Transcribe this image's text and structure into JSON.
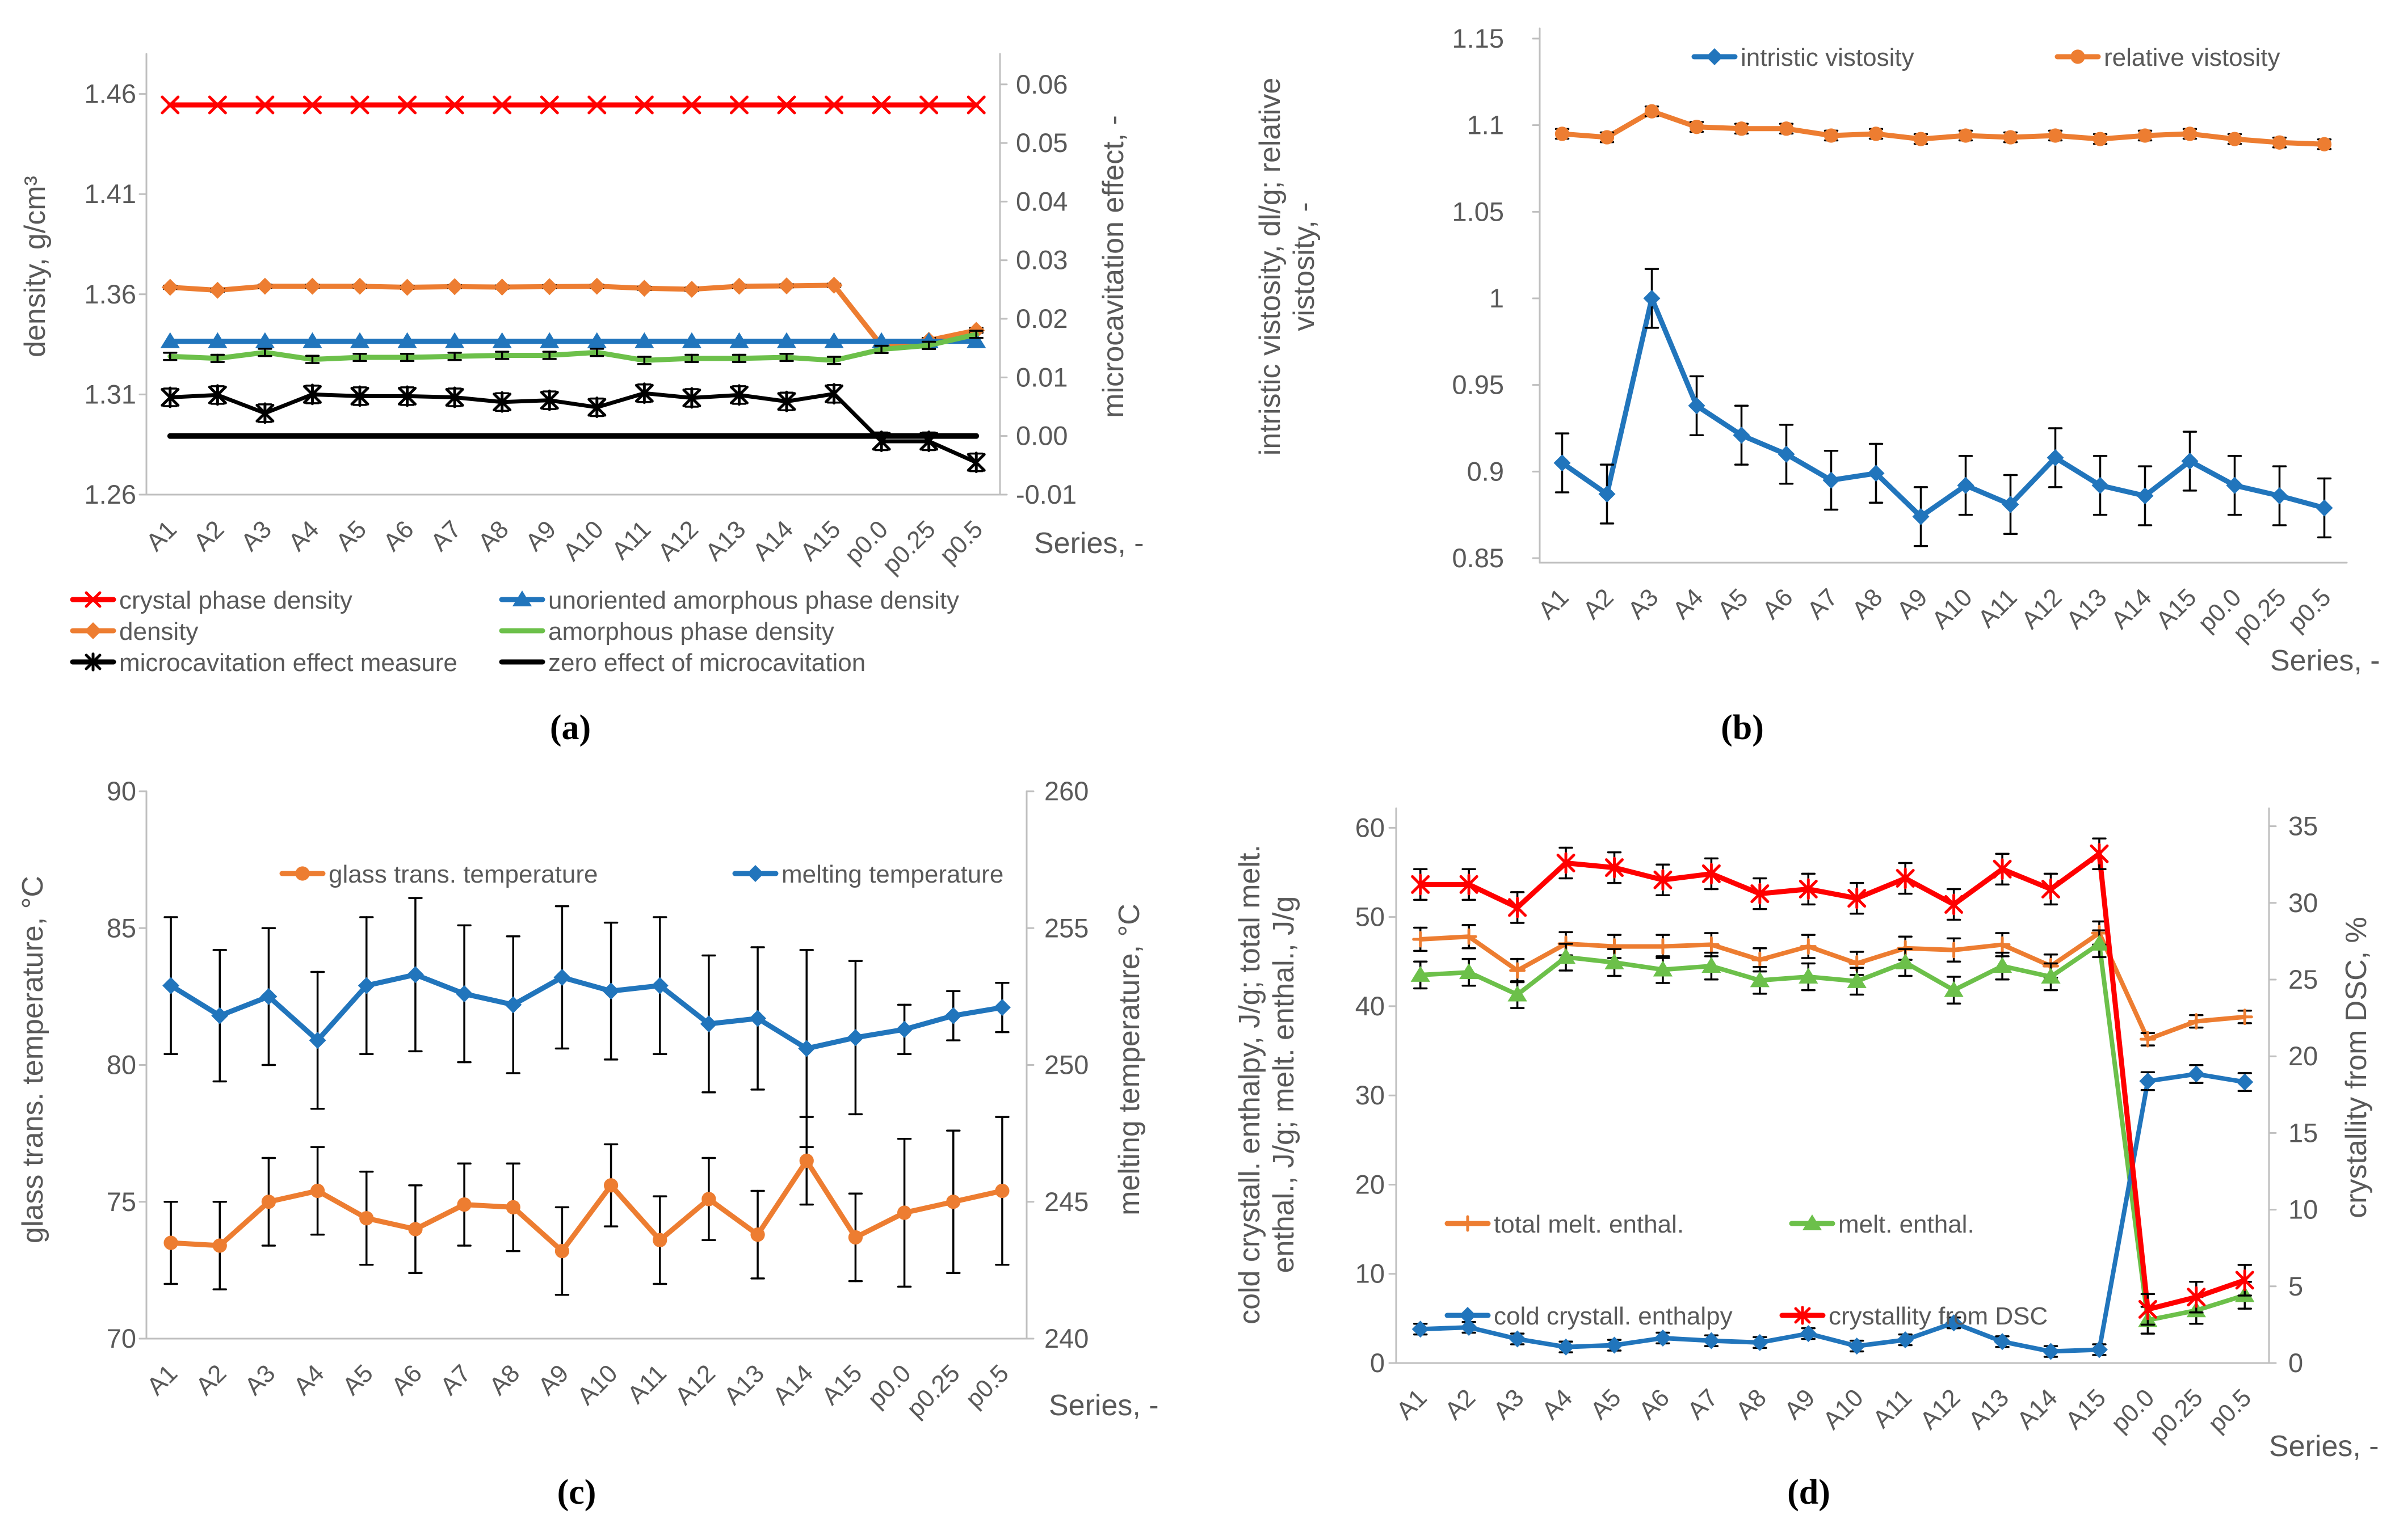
{
  "figure": {
    "x_axis_title": "Series, -",
    "text_color": "#595959",
    "axis_line_color": "#BFBFBF"
  },
  "chart_data": [
    {
      "id": "a",
      "type": "line",
      "caption": "(a)",
      "xlabel": "Series, -",
      "ylabel_left_lines": [
        "density, g/cm³"
      ],
      "ylabel_right": "microcavitation effect, -",
      "categories": [
        "A1",
        "A2",
        "A3",
        "A4",
        "A5",
        "A6",
        "A7",
        "A8",
        "A9",
        "A10",
        "A11",
        "A12",
        "A13",
        "A14",
        "A15",
        "p0.0",
        "p0.25",
        "p0.5"
      ],
      "axes": {
        "left": {
          "tick_labels": [
            "1.46",
            "1.41",
            "1.36",
            "1.31",
            "1.26"
          ],
          "tick_values": [
            1.46,
            1.41,
            1.36,
            1.31,
            1.26
          ]
        },
        "right": {
          "tick_labels": [
            "0.06",
            "0.05",
            "0.04",
            "0.03",
            "0.02",
            "0.01",
            "0.00",
            "-0.01"
          ],
          "tick_values": [
            0.06,
            0.05,
            0.04,
            0.03,
            0.02,
            0.01,
            0.0,
            -0.01
          ]
        }
      },
      "series": [
        {
          "name": "crystal phase density",
          "color": "#FF0000",
          "marker": "x",
          "axis": "left",
          "line_width": 9,
          "errors": null,
          "values": [
            1.4545,
            1.4545,
            1.4545,
            1.4545,
            1.4545,
            1.4545,
            1.4545,
            1.4545,
            1.4545,
            1.4545,
            1.4545,
            1.4545,
            1.4545,
            1.4545,
            1.4545,
            1.4545,
            1.4545,
            1.4545
          ]
        },
        {
          "name": "density",
          "color": "#ED7D31",
          "marker": "diamond",
          "axis": "left",
          "line_width": 9,
          "errors": [
            0.0008,
            0.0008,
            0.0008,
            0.0008,
            0.0008,
            0.0008,
            0.0008,
            0.0008,
            0.0008,
            0.0008,
            0.0008,
            0.0008,
            0.0008,
            0.0008,
            0.0008,
            0.0012,
            0.0012,
            0.0012
          ],
          "values": [
            1.3635,
            1.362,
            1.364,
            1.364,
            1.364,
            1.3635,
            1.3638,
            1.3636,
            1.3638,
            1.364,
            1.363,
            1.3625,
            1.364,
            1.3642,
            1.3645,
            1.3345,
            1.337,
            1.342
          ]
        },
        {
          "name": "unoriented amorphous phase density",
          "color": "#2175BC",
          "marker": "triangle",
          "axis": "left",
          "line_width": 9,
          "errors": null,
          "values": [
            1.3365,
            1.3365,
            1.3365,
            1.3365,
            1.3365,
            1.3365,
            1.3365,
            1.3365,
            1.3365,
            1.3365,
            1.3365,
            1.3365,
            1.3365,
            1.3365,
            1.3365,
            1.3365,
            1.3365,
            1.3365
          ]
        },
        {
          "name": "amorphous phase density",
          "color": "#6CC04A",
          "marker": "none",
          "axis": "left",
          "line_width": 9,
          "errors": 0.0018,
          "values": [
            1.329,
            1.328,
            1.331,
            1.3275,
            1.3285,
            1.3285,
            1.329,
            1.3295,
            1.3295,
            1.331,
            1.327,
            1.328,
            1.328,
            1.3285,
            1.327,
            1.3325,
            1.3345,
            1.34
          ]
        },
        {
          "name": "microcavitation effect measure",
          "color": "#000000",
          "marker": "star",
          "axis": "right",
          "line_width": 7,
          "errors": 0.0015,
          "values": [
            0.0066,
            0.007,
            0.0039,
            0.0071,
            0.0068,
            0.0068,
            0.0066,
            0.0058,
            0.0061,
            0.0049,
            0.0073,
            0.0065,
            0.007,
            0.0059,
            0.0072,
            -0.0009,
            -0.0009,
            -0.0045
          ]
        },
        {
          "name": "zero effect of microcavitation",
          "color": "#000000",
          "marker": "none",
          "axis": "right",
          "line_width": 10,
          "errors": null,
          "values": [
            0,
            0,
            0,
            0,
            0,
            0,
            0,
            0,
            0,
            0,
            0,
            0,
            0,
            0,
            0,
            0,
            0,
            0
          ]
        }
      ]
    },
    {
      "id": "b",
      "type": "line",
      "caption": "(b)",
      "xlabel": "Series, -",
      "ylabel_left_lines": [
        "intristic vistosity, dl/g; relative",
        "vistosity, -"
      ],
      "categories": [
        "A1",
        "A2",
        "A3",
        "A4",
        "A5",
        "A6",
        "A7",
        "A8",
        "A9",
        "A10",
        "A11",
        "A12",
        "A13",
        "A14",
        "A15",
        "p0.0",
        "p0.25",
        "p0.5"
      ],
      "axes": {
        "left": {
          "tick_labels": [
            "1.15",
            "1.1",
            "1.05",
            "1",
            "0.95",
            "0.9",
            "0.85"
          ],
          "tick_values": [
            1.15,
            1.1,
            1.05,
            1.0,
            0.95,
            0.9,
            0.85
          ]
        }
      },
      "series": [
        {
          "name": "intristic vistosity",
          "color": "#2175BC",
          "marker": "diamond",
          "axis": "left",
          "line_width": 9,
          "errors": 0.017,
          "values": [
            0.905,
            0.887,
            1.0,
            0.938,
            0.921,
            0.91,
            0.895,
            0.899,
            0.874,
            0.892,
            0.881,
            0.908,
            0.892,
            0.886,
            0.906,
            0.892,
            0.886,
            0.879
          ]
        },
        {
          "name": "relative vistosity",
          "color": "#ED7D31",
          "marker": "circle",
          "axis": "left",
          "line_width": 9,
          "errors": 0.0028,
          "values": [
            1.095,
            1.093,
            1.108,
            1.099,
            1.098,
            1.098,
            1.094,
            1.095,
            1.092,
            1.094,
            1.093,
            1.094,
            1.092,
            1.094,
            1.095,
            1.092,
            1.09,
            1.089
          ]
        }
      ]
    },
    {
      "id": "c",
      "type": "line",
      "caption": "(c)",
      "xlabel": "Series, -",
      "ylabel_left_lines": [
        "glass trans. temperature, °C"
      ],
      "ylabel_right": "melting temperature, °C",
      "categories": [
        "A1",
        "A2",
        "A3",
        "A4",
        "A5",
        "A6",
        "A7",
        "A8",
        "A9",
        "A10",
        "A11",
        "A12",
        "A13",
        "A14",
        "A15",
        "p0.0",
        "p0.25",
        "p0.5"
      ],
      "axes": {
        "left": {
          "tick_labels": [
            "90",
            "85",
            "80",
            "75",
            "70"
          ],
          "tick_values": [
            90,
            85,
            80,
            75,
            70
          ]
        },
        "right": {
          "tick_labels": [
            "260",
            "255",
            "250",
            "245",
            "240"
          ],
          "tick_values": [
            260,
            255,
            250,
            245,
            240
          ]
        }
      },
      "series": [
        {
          "name": "glass trans. temperature",
          "color": "#ED7D31",
          "marker": "circle",
          "axis": "left",
          "line_width": 9,
          "errors": [
            1.5,
            1.6,
            1.6,
            1.6,
            1.7,
            1.6,
            1.5,
            1.6,
            1.6,
            1.5,
            1.6,
            1.5,
            1.6,
            1.6,
            1.6,
            2.7,
            2.6,
            2.7
          ],
          "values": [
            73.5,
            73.4,
            75.0,
            75.4,
            74.4,
            74.0,
            74.9,
            74.8,
            73.2,
            75.6,
            73.6,
            75.1,
            73.8,
            76.5,
            73.7,
            74.6,
            75.0,
            75.4
          ]
        },
        {
          "name": "melting temperature",
          "color": "#2175BC",
          "marker": "diamond",
          "axis": "right",
          "line_width": 9,
          "errors": [
            2.5,
            2.4,
            2.5,
            2.5,
            2.5,
            2.8,
            2.5,
            2.5,
            2.6,
            2.5,
            2.5,
            2.5,
            2.6,
            3.6,
            2.8,
            0.9,
            0.9,
            0.9
          ],
          "values": [
            252.9,
            251.8,
            252.5,
            250.9,
            252.9,
            253.3,
            252.6,
            252.2,
            253.2,
            252.7,
            252.9,
            251.5,
            251.7,
            250.6,
            251.0,
            251.3,
            251.8,
            252.1
          ]
        }
      ]
    },
    {
      "id": "d",
      "type": "line",
      "caption": "(d)",
      "xlabel": "Series, -",
      "ylabel_left_lines": [
        "cold crystall. enthalpy, J/g; total melt.",
        "enthal., J/g; melt. enthal., J/g"
      ],
      "ylabel_right": "crystallity from DSC, %",
      "categories": [
        "A1",
        "A2",
        "A3",
        "A4",
        "A5",
        "A6",
        "A7",
        "A8",
        "A9",
        "A10",
        "A11",
        "A12",
        "A13",
        "A14",
        "A15",
        "p0.0",
        "p0.25",
        "p0.5"
      ],
      "axes": {
        "left": {
          "tick_labels": [
            "60",
            "50",
            "40",
            "30",
            "20",
            "10",
            "0"
          ],
          "tick_values": [
            60,
            50,
            40,
            30,
            20,
            10,
            0
          ]
        },
        "right": {
          "tick_labels": [
            "35",
            "30",
            "25",
            "20",
            "15",
            "10",
            "5",
            "0"
          ],
          "tick_values": [
            35,
            30,
            25,
            20,
            15,
            10,
            5,
            0
          ]
        }
      },
      "series": [
        {
          "name": "total melt. enthal.",
          "color": "#ED7D31",
          "marker": "plus",
          "axis": "left",
          "line_width": 8,
          "errors": [
            1.3,
            1.3,
            1.3,
            1.3,
            1.3,
            1.3,
            1.3,
            1.3,
            1.3,
            1.3,
            1.3,
            1.3,
            1.3,
            1.3,
            1.3,
            0.7,
            0.7,
            0.7
          ],
          "values": [
            47.5,
            47.8,
            44.0,
            47.0,
            46.7,
            46.7,
            46.9,
            45.2,
            46.7,
            44.8,
            46.5,
            46.3,
            46.9,
            44.5,
            48.2,
            36.3,
            38.3,
            38.8
          ]
        },
        {
          "name": "melt. enthal.",
          "color": "#6CC04A",
          "marker": "triangle",
          "axis": "left",
          "line_width": 8,
          "errors": 1.5,
          "values": [
            43.5,
            43.8,
            41.3,
            45.5,
            44.9,
            44.1,
            44.5,
            42.9,
            43.3,
            42.8,
            44.9,
            41.8,
            44.5,
            43.3,
            47.0,
            4.8,
            5.9,
            7.6
          ]
        },
        {
          "name": "cold crystall. enthalpy",
          "color": "#2175BC",
          "marker": "diamond",
          "axis": "left",
          "line_width": 8,
          "errors": [
            0.6,
            0.6,
            0.6,
            0.6,
            0.6,
            0.6,
            0.6,
            0.6,
            0.6,
            0.6,
            0.6,
            0.6,
            0.6,
            0.6,
            0.6,
            1.0,
            1.0,
            1.0
          ],
          "values": [
            3.8,
            4.0,
            2.7,
            1.8,
            2.0,
            2.8,
            2.5,
            2.3,
            3.3,
            1.9,
            2.6,
            4.5,
            2.4,
            1.3,
            1.5,
            31.6,
            32.4,
            31.5
          ]
        },
        {
          "name": "crystallity from DSC",
          "color": "#FF0000",
          "marker": "star",
          "axis": "right",
          "line_width": 9,
          "errors": 1.0,
          "values": [
            31.2,
            31.2,
            29.7,
            32.6,
            32.3,
            31.5,
            31.9,
            30.6,
            30.9,
            30.3,
            31.6,
            29.9,
            32.2,
            30.9,
            33.2,
            3.5,
            4.3,
            5.4
          ]
        }
      ]
    }
  ]
}
